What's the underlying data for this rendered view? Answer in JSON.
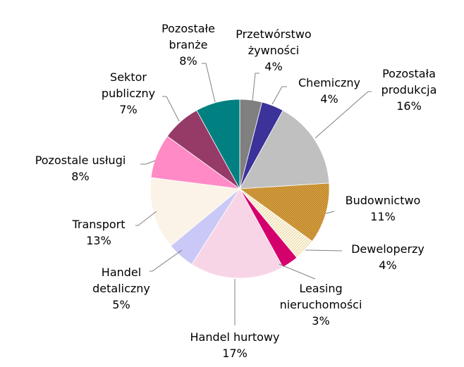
{
  "chart_data": {
    "type": "pie",
    "start_angle_deg": 0,
    "direction": "clockwise",
    "slices": [
      {
        "name": "Przetwórstwo żywności",
        "value": 4,
        "label_lines": [
          "Przetwórstwo",
          "żywności"
        ],
        "pct_label": "4%",
        "color": "#808080",
        "pattern": "solid"
      },
      {
        "name": "Chemiczny",
        "value": 4,
        "label_lines": [
          "Chemiczny"
        ],
        "pct_label": "4%",
        "color": "#3b3399",
        "pattern": "solid"
      },
      {
        "name": "Pozostała produkcja",
        "value": 16,
        "label_lines": [
          "Pozostała",
          "produkcja"
        ],
        "pct_label": "16%",
        "color": "#c0c0c0",
        "pattern": "solid"
      },
      {
        "name": "Budownictwo",
        "value": 11,
        "label_lines": [
          "Budownictwo"
        ],
        "pct_label": "11%",
        "color": "#c8912f",
        "pattern": "hatch-dense"
      },
      {
        "name": "Deweloperzy",
        "value": 4,
        "label_lines": [
          "Deweloperzy"
        ],
        "pct_label": "4%",
        "color": "#f3e3b6",
        "pattern": "hatch-light"
      },
      {
        "name": "Leasing nieruchomości",
        "value": 3,
        "label_lines": [
          "Leasing",
          "nieruchomości"
        ],
        "pct_label": "3%",
        "color": "#d4006c",
        "pattern": "solid"
      },
      {
        "name": "Handel hurtowy",
        "value": 17,
        "label_lines": [
          "Handel hurtowy"
        ],
        "pct_label": "17%",
        "color": "#f8d5e6",
        "pattern": "solid"
      },
      {
        "name": "Handel detaliczny",
        "value": 5,
        "label_lines": [
          "Handel",
          "detaliczny"
        ],
        "pct_label": "5%",
        "color": "#c9c8f6",
        "pattern": "solid"
      },
      {
        "name": "Transport",
        "value": 13,
        "label_lines": [
          "Transport"
        ],
        "pct_label": "13%",
        "color": "#fcf3e8",
        "pattern": "solid"
      },
      {
        "name": "Pozostale usługi",
        "value": 8,
        "label_lines": [
          "Pozostale usługi"
        ],
        "pct_label": "8%",
        "color": "#ff8ac6",
        "pattern": "solid"
      },
      {
        "name": "Sektor publiczny",
        "value": 7,
        "label_lines": [
          "Sektor",
          "publiczny"
        ],
        "pct_label": "7%",
        "color": "#963a68",
        "pattern": "solid"
      },
      {
        "name": "Pozostałe branże",
        "value": 8,
        "label_lines": [
          "Pozostałe",
          "branże"
        ],
        "pct_label": "8%",
        "color": "#008080",
        "pattern": "solid"
      }
    ]
  }
}
